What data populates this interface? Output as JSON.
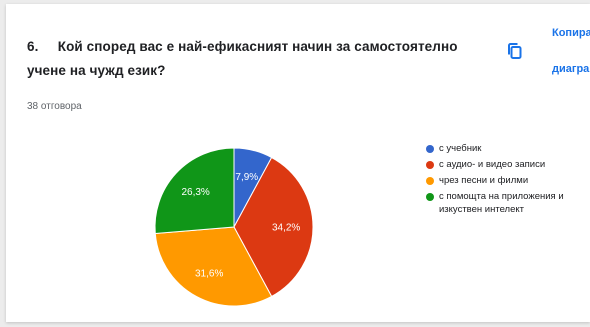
{
  "question": {
    "number": "6.",
    "title": "Кой според вас е най-ефикасният начин за самостоятелно учене на чужд език?",
    "response_count": "38 отговора"
  },
  "copy": {
    "icon": "copy-icon",
    "label_line1": "Копира",
    "label_line2": "диагра"
  },
  "colors": {
    "blue": "#3366cc",
    "red": "#dc3912",
    "orange": "#ff9900",
    "green": "#109618"
  },
  "chart_data": {
    "type": "pie",
    "categories": [
      "с учебник",
      "с аудио- и видео записи",
      "чрез песни и филми",
      "с помощта на приложения и изкуствен интелект"
    ],
    "values": [
      7.9,
      34.2,
      31.6,
      26.3
    ],
    "value_labels": [
      "7,9%",
      "34,2%",
      "31,6%",
      "26,3%"
    ],
    "colors": [
      "#3366cc",
      "#dc3912",
      "#ff9900",
      "#109618"
    ],
    "legend_placement": "right"
  }
}
